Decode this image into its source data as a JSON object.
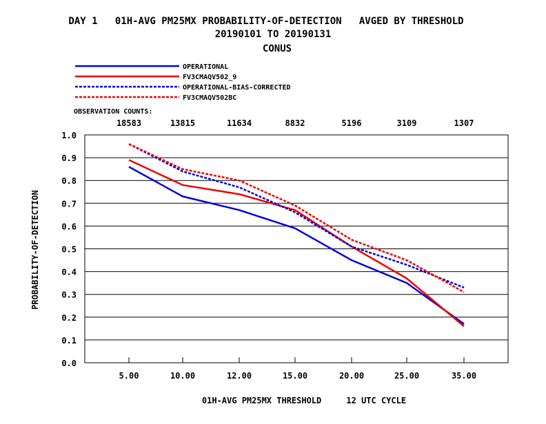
{
  "chart_data": {
    "type": "line",
    "title_line1": "DAY 1   01H-AVG PM25MX PROBABILITY-OF-DETECTION   AVGED BY THRESHOLD",
    "title_line2": "20190101 TO 20190131",
    "title_line3": "CONUS",
    "xlabel": "01H-AVG PM25MX THRESHOLD     12 UTC CYCLE",
    "ylabel": "PROBABILITY-OF-DETECTION",
    "obs_label": "OBSERVATION COUNTS:",
    "observation_counts": [
      "18583",
      "13815",
      "11634",
      "8832",
      "5196",
      "3109",
      "1307"
    ],
    "categories": [
      "5.00",
      "10.00",
      "12.00",
      "15.00",
      "20.00",
      "25.00",
      "35.00"
    ],
    "yticks": [
      "0.0",
      "0.1",
      "0.2",
      "0.3",
      "0.4",
      "0.5",
      "0.6",
      "0.7",
      "0.8",
      "0.9",
      "1.0"
    ],
    "ylim": [
      0,
      1.0
    ],
    "grid": true,
    "legend_position": "top-left",
    "series": [
      {
        "name": "OPERATIONAL",
        "color": "#0000dd",
        "dashed": false,
        "values": [
          0.86,
          0.73,
          0.67,
          0.59,
          0.45,
          0.35,
          0.17
        ]
      },
      {
        "name": "FV3CMAQV502_9",
        "color": "#ee0000",
        "dashed": false,
        "values": [
          0.89,
          0.78,
          0.74,
          0.67,
          0.51,
          0.37,
          0.16
        ]
      },
      {
        "name": "OPERATIONAL-BIAS-CORRECTED",
        "color": "#0000dd",
        "dashed": true,
        "values": [
          0.96,
          0.84,
          0.77,
          0.66,
          0.51,
          0.43,
          0.33
        ]
      },
      {
        "name": "FV3CMAQV502BC",
        "color": "#ee0000",
        "dashed": true,
        "values": [
          0.96,
          0.85,
          0.8,
          0.69,
          0.54,
          0.45,
          0.31
        ]
      }
    ]
  }
}
